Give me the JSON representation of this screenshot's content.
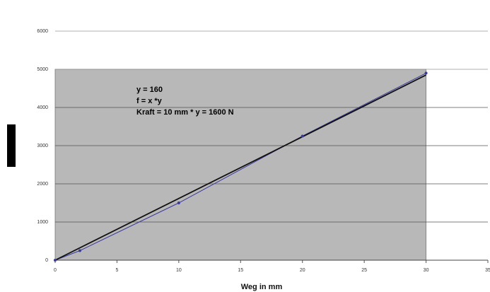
{
  "chart_data": {
    "type": "scatter",
    "x": [
      0,
      2,
      10,
      20,
      30
    ],
    "values": [
      0,
      250,
      1500,
      3250,
      4900
    ],
    "color": "#3a3aa0",
    "trend_x": [
      0,
      30
    ],
    "trend_values": [
      0,
      4850
    ],
    "trend_color": "#111111",
    "xlabel": "Weg in mm",
    "annotations": [
      "y = 160",
      "f = x *y",
      "Kraft = 10 mm * y = 1600 N"
    ],
    "xlim": [
      0,
      35
    ],
    "xticks": [
      0,
      5,
      10,
      15,
      20,
      25,
      30,
      35
    ],
    "ylim": [
      0,
      6000
    ],
    "yticks": [
      0,
      1000,
      2000,
      3000,
      4000,
      5000,
      6000
    ],
    "grid": true,
    "plot_background": "#b8b8b8"
  }
}
